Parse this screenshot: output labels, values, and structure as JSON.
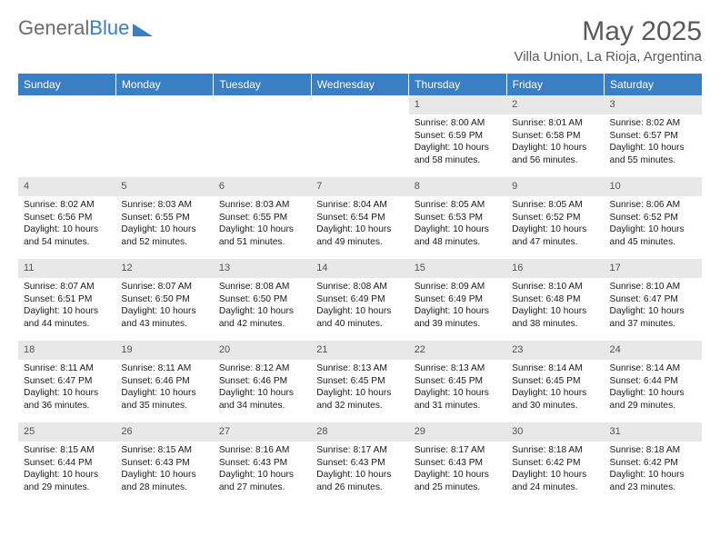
{
  "logo": {
    "text1": "General",
    "text2": "Blue"
  },
  "title": "May 2025",
  "location": "Villa Union, La Rioja, Argentina",
  "colors": {
    "header_bg": "#3a7fc4",
    "header_text": "#ffffff",
    "daynum_bg": "#e8e8e8",
    "daynum_text": "#555555",
    "body_text": "#1a1a1a",
    "title_text": "#5a5a5a",
    "logo_gray": "#6b6b6b",
    "logo_blue": "#3a7fc4"
  },
  "weekdays": [
    "Sunday",
    "Monday",
    "Tuesday",
    "Wednesday",
    "Thursday",
    "Friday",
    "Saturday"
  ],
  "first_weekday_index": 4,
  "days": [
    {
      "n": 1,
      "sunrise": "8:00 AM",
      "sunset": "6:59 PM",
      "daylight": "10 hours and 58 minutes."
    },
    {
      "n": 2,
      "sunrise": "8:01 AM",
      "sunset": "6:58 PM",
      "daylight": "10 hours and 56 minutes."
    },
    {
      "n": 3,
      "sunrise": "8:02 AM",
      "sunset": "6:57 PM",
      "daylight": "10 hours and 55 minutes."
    },
    {
      "n": 4,
      "sunrise": "8:02 AM",
      "sunset": "6:56 PM",
      "daylight": "10 hours and 54 minutes."
    },
    {
      "n": 5,
      "sunrise": "8:03 AM",
      "sunset": "6:55 PM",
      "daylight": "10 hours and 52 minutes."
    },
    {
      "n": 6,
      "sunrise": "8:03 AM",
      "sunset": "6:55 PM",
      "daylight": "10 hours and 51 minutes."
    },
    {
      "n": 7,
      "sunrise": "8:04 AM",
      "sunset": "6:54 PM",
      "daylight": "10 hours and 49 minutes."
    },
    {
      "n": 8,
      "sunrise": "8:05 AM",
      "sunset": "6:53 PM",
      "daylight": "10 hours and 48 minutes."
    },
    {
      "n": 9,
      "sunrise": "8:05 AM",
      "sunset": "6:52 PM",
      "daylight": "10 hours and 47 minutes."
    },
    {
      "n": 10,
      "sunrise": "8:06 AM",
      "sunset": "6:52 PM",
      "daylight": "10 hours and 45 minutes."
    },
    {
      "n": 11,
      "sunrise": "8:07 AM",
      "sunset": "6:51 PM",
      "daylight": "10 hours and 44 minutes."
    },
    {
      "n": 12,
      "sunrise": "8:07 AM",
      "sunset": "6:50 PM",
      "daylight": "10 hours and 43 minutes."
    },
    {
      "n": 13,
      "sunrise": "8:08 AM",
      "sunset": "6:50 PM",
      "daylight": "10 hours and 42 minutes."
    },
    {
      "n": 14,
      "sunrise": "8:08 AM",
      "sunset": "6:49 PM",
      "daylight": "10 hours and 40 minutes."
    },
    {
      "n": 15,
      "sunrise": "8:09 AM",
      "sunset": "6:49 PM",
      "daylight": "10 hours and 39 minutes."
    },
    {
      "n": 16,
      "sunrise": "8:10 AM",
      "sunset": "6:48 PM",
      "daylight": "10 hours and 38 minutes."
    },
    {
      "n": 17,
      "sunrise": "8:10 AM",
      "sunset": "6:47 PM",
      "daylight": "10 hours and 37 minutes."
    },
    {
      "n": 18,
      "sunrise": "8:11 AM",
      "sunset": "6:47 PM",
      "daylight": "10 hours and 36 minutes."
    },
    {
      "n": 19,
      "sunrise": "8:11 AM",
      "sunset": "6:46 PM",
      "daylight": "10 hours and 35 minutes."
    },
    {
      "n": 20,
      "sunrise": "8:12 AM",
      "sunset": "6:46 PM",
      "daylight": "10 hours and 34 minutes."
    },
    {
      "n": 21,
      "sunrise": "8:13 AM",
      "sunset": "6:45 PM",
      "daylight": "10 hours and 32 minutes."
    },
    {
      "n": 22,
      "sunrise": "8:13 AM",
      "sunset": "6:45 PM",
      "daylight": "10 hours and 31 minutes."
    },
    {
      "n": 23,
      "sunrise": "8:14 AM",
      "sunset": "6:45 PM",
      "daylight": "10 hours and 30 minutes."
    },
    {
      "n": 24,
      "sunrise": "8:14 AM",
      "sunset": "6:44 PM",
      "daylight": "10 hours and 29 minutes."
    },
    {
      "n": 25,
      "sunrise": "8:15 AM",
      "sunset": "6:44 PM",
      "daylight": "10 hours and 29 minutes."
    },
    {
      "n": 26,
      "sunrise": "8:15 AM",
      "sunset": "6:43 PM",
      "daylight": "10 hours and 28 minutes."
    },
    {
      "n": 27,
      "sunrise": "8:16 AM",
      "sunset": "6:43 PM",
      "daylight": "10 hours and 27 minutes."
    },
    {
      "n": 28,
      "sunrise": "8:17 AM",
      "sunset": "6:43 PM",
      "daylight": "10 hours and 26 minutes."
    },
    {
      "n": 29,
      "sunrise": "8:17 AM",
      "sunset": "6:43 PM",
      "daylight": "10 hours and 25 minutes."
    },
    {
      "n": 30,
      "sunrise": "8:18 AM",
      "sunset": "6:42 PM",
      "daylight": "10 hours and 24 minutes."
    },
    {
      "n": 31,
      "sunrise": "8:18 AM",
      "sunset": "6:42 PM",
      "daylight": "10 hours and 23 minutes."
    }
  ],
  "labels": {
    "sunrise": "Sunrise:",
    "sunset": "Sunset:",
    "daylight": "Daylight:"
  }
}
